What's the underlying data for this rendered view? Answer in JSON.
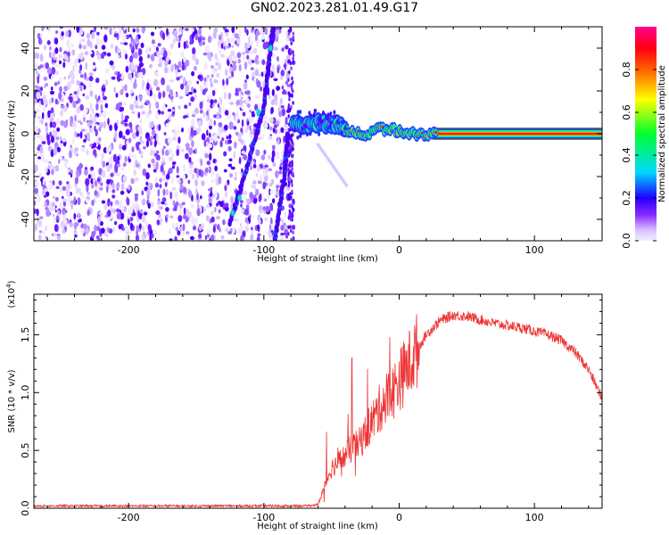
{
  "title": "GN02.2023.281.01.49.G17",
  "colors": {
    "snr_line": "#ee3333",
    "colormap": [
      "#f0f0ff",
      "#dcc8ff",
      "#b482ff",
      "#6a00ff",
      "#0000ff",
      "#00d8ff",
      "#00ff40",
      "#ffff00",
      "#ff7a00",
      "#ff0000",
      "#ff0090"
    ]
  },
  "chart_data": [
    {
      "type": "heatmap",
      "name": "spectrogram",
      "xlabel": "Height of straight line (km)",
      "ylabel": "Frequency (Hz)",
      "xlim": [
        -270,
        150
      ],
      "ylim": [
        -50,
        50
      ],
      "xticks": [
        -200,
        -100,
        0,
        100
      ],
      "yticks": [
        -40,
        -20,
        0,
        20,
        40
      ],
      "colorbar": {
        "label": "Normalized spectral amplitude",
        "range": [
          0,
          1
        ],
        "ticks": [
          0.0,
          0.2,
          0.4,
          0.6,
          0.8
        ]
      },
      "features": {
        "noise_region_x": [
          -270,
          -78
        ],
        "diagonal_trace": [
          [
            -125,
            -42
          ],
          [
            -110,
            -10
          ],
          [
            -100,
            12
          ],
          [
            -95,
            40
          ],
          [
            -93,
            50
          ]
        ],
        "second_trace": [
          [
            -92,
            -50
          ],
          [
            -85,
            -20
          ],
          [
            -82,
            0
          ]
        ],
        "signal_band": [
          [
            -78,
            4
          ],
          [
            -60,
            5
          ],
          [
            -45,
            4
          ],
          [
            -35,
            1
          ],
          [
            -25,
            -1
          ],
          [
            -15,
            2
          ],
          [
            -5,
            2
          ],
          [
            10,
            0
          ],
          [
            30,
            0
          ],
          [
            150,
            0
          ]
        ],
        "faint_tail": [
          [
            -60,
            -5
          ],
          [
            -38,
            -25
          ]
        ]
      }
    },
    {
      "type": "line",
      "name": "snr",
      "xlabel": "Height of straight line (km)",
      "ylabel": "SNR (10 * v/v)",
      "y_multiplier": "(x10^4)",
      "xlim": [
        -270,
        150
      ],
      "ylim": [
        0,
        1.85
      ],
      "xticks": [
        -200,
        -100,
        0,
        100
      ],
      "yticks": [
        0.0,
        0.5,
        1.0,
        1.5
      ],
      "series": [
        {
          "x": [
            -270,
            -200,
            -150,
            -100,
            -70,
            -60,
            -55,
            -50,
            -45,
            -40,
            -35,
            -30,
            -25,
            -20,
            -15,
            -10,
            -5,
            0,
            10,
            20,
            30,
            40,
            50,
            60,
            70,
            80,
            90,
            100,
            110,
            120,
            130,
            140,
            150
          ],
          "y": [
            0.02,
            0.02,
            0.02,
            0.02,
            0.02,
            0.03,
            0.2,
            0.35,
            0.4,
            0.45,
            0.52,
            0.55,
            0.65,
            0.75,
            0.85,
            0.95,
            1.0,
            1.1,
            1.3,
            1.5,
            1.62,
            1.67,
            1.66,
            1.63,
            1.6,
            1.58,
            1.56,
            1.53,
            1.5,
            1.45,
            1.35,
            1.2,
            0.95
          ]
        }
      ]
    }
  ],
  "bottom_ylabel_extra": "4"
}
